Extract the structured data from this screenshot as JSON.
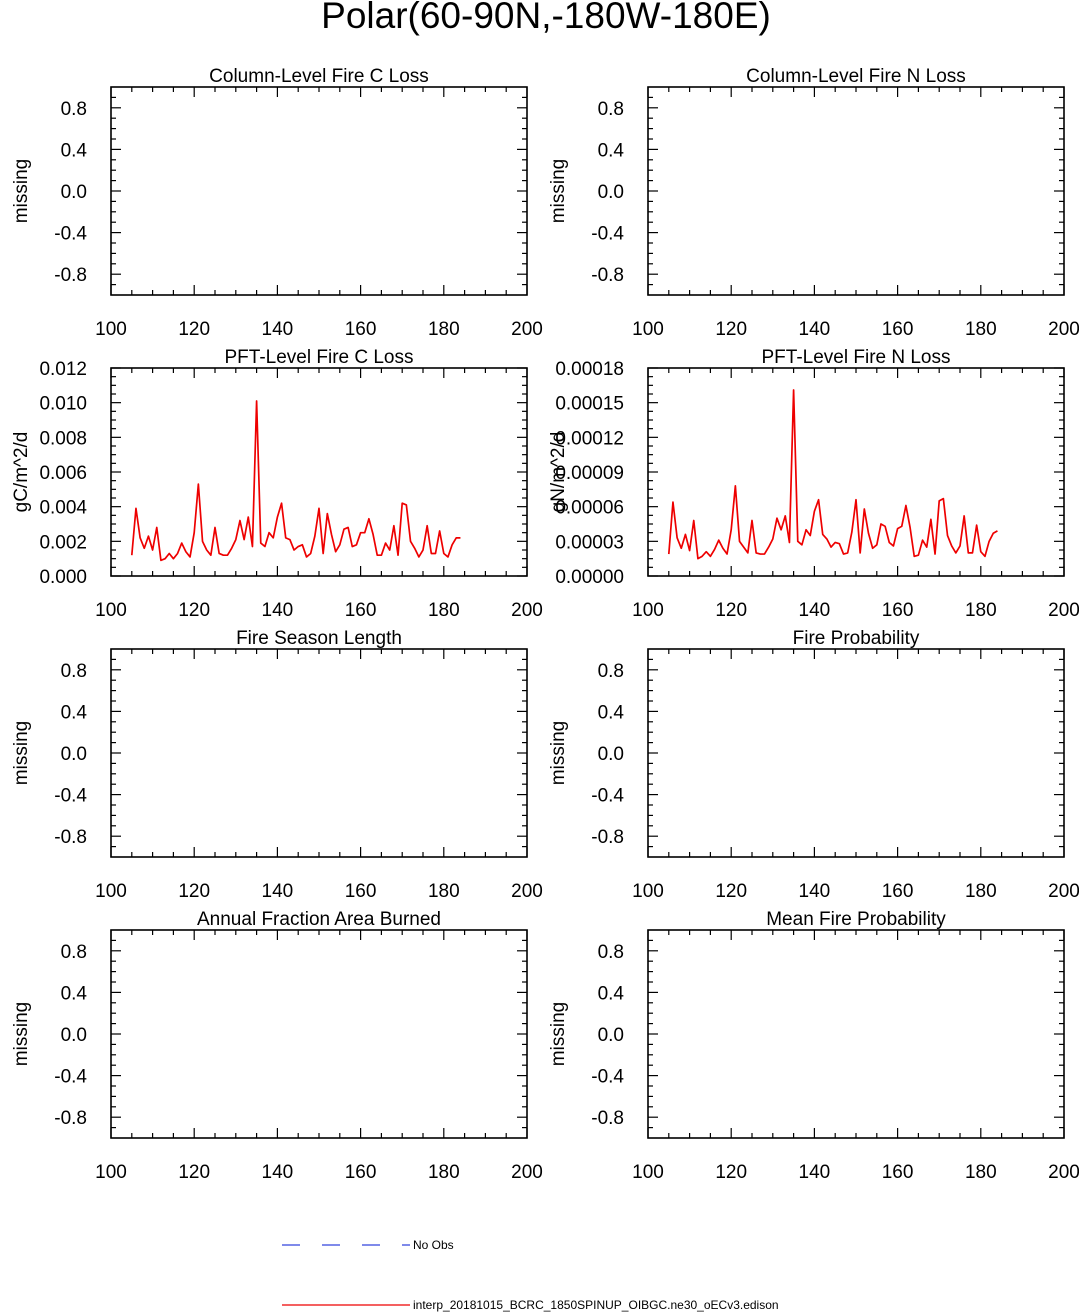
{
  "figure": {
    "title": "Polar(60-90N,-180W-180E)",
    "legend": [
      {
        "label": "No Obs",
        "color": "#3344dd",
        "style": "dashed"
      },
      {
        "label": "interp_20181015_BCRC_1850SPINUP_OIBGC.ne30_oECv3.edison",
        "color": "#ee0000",
        "style": "solid"
      }
    ]
  },
  "chart_data": [
    {
      "type": "line",
      "title": "Column-Level Fire C Loss",
      "ylabel": "missing",
      "xlim": [
        100,
        200
      ],
      "ylim": [
        -1,
        1
      ],
      "xticks": [
        "100",
        "120",
        "140",
        "160",
        "180",
        "200"
      ],
      "yticks": [
        "0.8",
        "0.4",
        "0.0",
        "-0.4",
        "-0.8"
      ],
      "series": []
    },
    {
      "type": "line",
      "title": "Column-Level Fire N Loss",
      "ylabel": "missing",
      "xlim": [
        100,
        200
      ],
      "ylim": [
        -1,
        1
      ],
      "xticks": [
        "100",
        "120",
        "140",
        "160",
        "180",
        "200"
      ],
      "yticks": [
        "0.8",
        "0.4",
        "0.0",
        "-0.4",
        "-0.8"
      ],
      "series": []
    },
    {
      "type": "line",
      "title": "PFT-Level Fire C Loss",
      "ylabel": "gC/m^2/d",
      "xlim": [
        100,
        200
      ],
      "ylim": [
        0,
        0.012
      ],
      "xticks": [
        "100",
        "120",
        "140",
        "160",
        "180",
        "200"
      ],
      "yticks": [
        "0.012",
        "0.010",
        "0.008",
        "0.006",
        "0.004",
        "0.002",
        "0.000"
      ],
      "series": [
        {
          "color": "#ee0000",
          "x": [
            105,
            106,
            107,
            108,
            109,
            110,
            111,
            112,
            113,
            114,
            115,
            116,
            117,
            118,
            119,
            120,
            121,
            122,
            123,
            124,
            125,
            126,
            127,
            128,
            129,
            130,
            131,
            132,
            133,
            134,
            135,
            136,
            137,
            138,
            139,
            140,
            141,
            142,
            143,
            144,
            145,
            146,
            147,
            148,
            149,
            150,
            151,
            152,
            153,
            154,
            155,
            156,
            157,
            158,
            159,
            160,
            161,
            162,
            163,
            164,
            165,
            166,
            167,
            168,
            169,
            170,
            171,
            172,
            173,
            174,
            175,
            176,
            177,
            178,
            179,
            180,
            181,
            182,
            183,
            184
          ],
          "y": [
            0.0012,
            0.0039,
            0.0022,
            0.0016,
            0.0023,
            0.0015,
            0.0028,
            0.0009,
            0.001,
            0.0013,
            0.001,
            0.0013,
            0.0019,
            0.0014,
            0.0011,
            0.0025,
            0.0053,
            0.002,
            0.0015,
            0.0012,
            0.0028,
            0.0013,
            0.0012,
            0.0012,
            0.0016,
            0.0021,
            0.0032,
            0.0021,
            0.0034,
            0.0017,
            0.0101,
            0.0019,
            0.0017,
            0.0025,
            0.0022,
            0.0034,
            0.0042,
            0.0022,
            0.0021,
            0.0015,
            0.0017,
            0.0018,
            0.0011,
            0.0013,
            0.0023,
            0.0039,
            0.0013,
            0.0036,
            0.0024,
            0.0014,
            0.0018,
            0.0027,
            0.0028,
            0.0017,
            0.0018,
            0.0025,
            0.0025,
            0.0033,
            0.0024,
            0.0012,
            0.0012,
            0.0019,
            0.0015,
            0.0029,
            0.0012,
            0.0042,
            0.0041,
            0.002,
            0.0016,
            0.0011,
            0.0015,
            0.0029,
            0.0013,
            0.0013,
            0.0026,
            0.0013,
            0.0011,
            0.0018,
            0.0022,
            0.0022
          ]
        }
      ]
    },
    {
      "type": "line",
      "title": "PFT-Level Fire N Loss",
      "ylabel": "gN/m^2/d",
      "xlim": [
        100,
        200
      ],
      "ylim": [
        0,
        0.00018
      ],
      "xticks": [
        "100",
        "120",
        "140",
        "160",
        "180",
        "200"
      ],
      "yticks": [
        "0.00018",
        "0.00015",
        "0.00012",
        "0.00009",
        "0.00006",
        "0.00003",
        "0.00000"
      ],
      "series": [
        {
          "color": "#ee0000",
          "x": [
            105,
            106,
            107,
            108,
            109,
            110,
            111,
            112,
            113,
            114,
            115,
            116,
            117,
            118,
            119,
            120,
            121,
            122,
            123,
            124,
            125,
            126,
            127,
            128,
            129,
            130,
            131,
            132,
            133,
            134,
            135,
            136,
            137,
            138,
            139,
            140,
            141,
            142,
            143,
            144,
            145,
            146,
            147,
            148,
            149,
            150,
            151,
            152,
            153,
            154,
            155,
            156,
            157,
            158,
            159,
            160,
            161,
            162,
            163,
            164,
            165,
            166,
            167,
            168,
            169,
            170,
            171,
            172,
            173,
            174,
            175,
            176,
            177,
            178,
            179,
            180,
            181,
            182,
            183,
            184
          ],
          "y": [
            1.9e-05,
            6.4e-05,
            3.3e-05,
            2.4e-05,
            3.6e-05,
            2.2e-05,
            4.8e-05,
            1.5e-05,
            1.7e-05,
            2.1e-05,
            1.7e-05,
            2.3e-05,
            3.1e-05,
            2.4e-05,
            1.9e-05,
            4e-05,
            7.8e-05,
            3e-05,
            2.5e-05,
            2e-05,
            4.8e-05,
            2e-05,
            1.9e-05,
            1.9e-05,
            2.5e-05,
            3.2e-05,
            5e-05,
            4e-05,
            5.2e-05,
            2.9e-05,
            0.000161,
            3e-05,
            2.7e-05,
            4e-05,
            3.5e-05,
            5.6e-05,
            6.6e-05,
            3.6e-05,
            3.2e-05,
            2.5e-05,
            2.9e-05,
            2.8e-05,
            1.9e-05,
            2e-05,
            3.8e-05,
            6.6e-05,
            2e-05,
            5.8e-05,
            3.7e-05,
            2.4e-05,
            2.7e-05,
            4.5e-05,
            4.3e-05,
            2.9e-05,
            2.6e-05,
            4.1e-05,
            4.3e-05,
            6.1e-05,
            4.2e-05,
            1.7e-05,
            1.8e-05,
            3.1e-05,
            2.5e-05,
            4.9e-05,
            1.9e-05,
            6.5e-05,
            6.7e-05,
            3.5e-05,
            2.6e-05,
            2e-05,
            2.6e-05,
            5.2e-05,
            2e-05,
            2e-05,
            4.4e-05,
            2.1e-05,
            1.7e-05,
            3e-05,
            3.7e-05,
            3.9e-05
          ]
        }
      ]
    },
    {
      "type": "line",
      "title": "Fire Season Length",
      "ylabel": "missing",
      "xlim": [
        100,
        200
      ],
      "ylim": [
        -1,
        1
      ],
      "xticks": [
        "100",
        "120",
        "140",
        "160",
        "180",
        "200"
      ],
      "yticks": [
        "0.8",
        "0.4",
        "0.0",
        "-0.4",
        "-0.8"
      ],
      "series": []
    },
    {
      "type": "line",
      "title": "Fire Probability",
      "ylabel": "missing",
      "xlim": [
        100,
        200
      ],
      "ylim": [
        -1,
        1
      ],
      "xticks": [
        "100",
        "120",
        "140",
        "160",
        "180",
        "200"
      ],
      "yticks": [
        "0.8",
        "0.4",
        "0.0",
        "-0.4",
        "-0.8"
      ],
      "series": []
    },
    {
      "type": "line",
      "title": "Annual Fraction Area Burned",
      "ylabel": "missing",
      "xlim": [
        100,
        200
      ],
      "ylim": [
        -1,
        1
      ],
      "xticks": [
        "100",
        "120",
        "140",
        "160",
        "180",
        "200"
      ],
      "yticks": [
        "0.8",
        "0.4",
        "0.0",
        "-0.4",
        "-0.8"
      ],
      "series": []
    },
    {
      "type": "line",
      "title": "Mean Fire Probability",
      "ylabel": "missing",
      "xlim": [
        100,
        200
      ],
      "ylim": [
        -1,
        1
      ],
      "xticks": [
        "100",
        "120",
        "140",
        "160",
        "180",
        "200"
      ],
      "yticks": [
        "0.8",
        "0.4",
        "0.0",
        "-0.4",
        "-0.8"
      ],
      "series": []
    }
  ]
}
